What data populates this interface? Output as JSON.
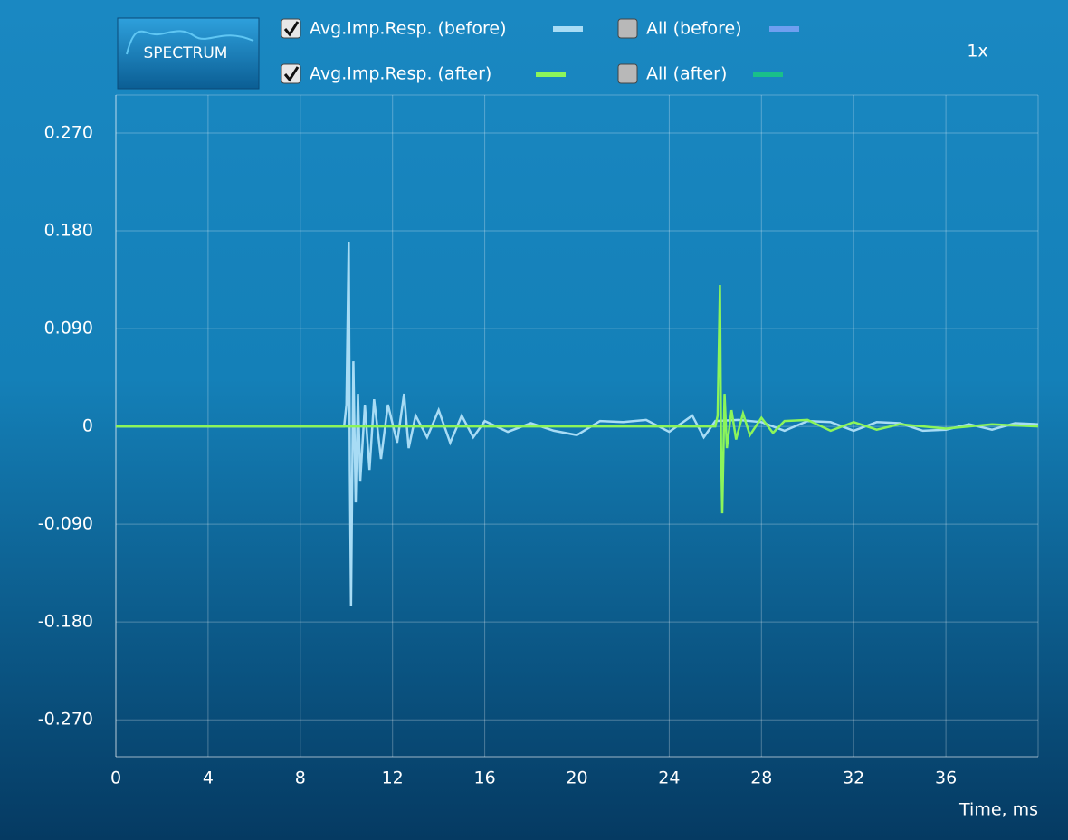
{
  "controls": {
    "spectrum_button": "SPECTRUM",
    "zoom": "1x",
    "toggles": [
      {
        "name": "All (before)",
        "color": "#6f9ff0",
        "checked": false
      },
      {
        "name": "All (after)",
        "color": "#19c08a",
        "checked": false
      }
    ]
  },
  "chart_data": {
    "type": "line",
    "x_label": "Time, ms",
    "grid": true,
    "xlim": [
      0,
      40
    ],
    "xticks": [
      0,
      4,
      8,
      12,
      16,
      20,
      24,
      28,
      32,
      36
    ],
    "ylim": [
      -0.304,
      0.305
    ],
    "yticks": [
      {
        "value": -0.27,
        "label": "-0.270"
      },
      {
        "value": -0.18,
        "label": "-0.180"
      },
      {
        "value": -0.09,
        "label": "-0.090"
      },
      0,
      {
        "value": 0.09,
        "label": "0.090"
      },
      {
        "value": 0.18,
        "label": "0.180"
      },
      {
        "value": 0.27,
        "label": "0.270"
      }
    ],
    "series": [
      {
        "name": "Avg.Imp.Resp. (before)",
        "color": "#a8dcf5",
        "checked": true,
        "x": [
          0,
          9.9,
          10.0,
          10.1,
          10.15,
          10.2,
          10.3,
          10.4,
          10.5,
          10.6,
          10.8,
          11.0,
          11.2,
          11.5,
          11.8,
          12.2,
          12.5,
          12.7,
          13.0,
          13.5,
          14.0,
          14.5,
          15.0,
          15.5,
          16.0,
          17,
          18,
          19,
          20,
          21,
          22,
          23,
          24,
          25,
          25.5,
          26,
          27,
          28,
          29,
          30,
          31,
          32,
          33,
          34,
          35,
          36,
          37,
          38,
          39,
          40
        ],
        "values": [
          0,
          0,
          0.02,
          0.17,
          -0.04,
          -0.165,
          0.06,
          -0.07,
          0.03,
          -0.05,
          0.02,
          -0.04,
          0.025,
          -0.03,
          0.02,
          -0.015,
          0.03,
          -0.02,
          0.01,
          -0.01,
          0.015,
          -0.015,
          0.01,
          -0.01,
          0.005,
          -0.005,
          0.003,
          -0.004,
          -0.008,
          0.005,
          0.004,
          0.006,
          -0.005,
          0.01,
          -0.01,
          0.005,
          0.006,
          0.004,
          -0.004,
          0.005,
          0.004,
          -0.004,
          0.004,
          0.003,
          -0.004,
          -0.003,
          0.002,
          -0.003,
          0.003,
          0.002
        ]
      },
      {
        "name": "Avg.Imp.Resp. (after)",
        "color": "#8cf55a",
        "checked": true,
        "x": [
          0,
          26.0,
          26.1,
          26.2,
          26.25,
          26.3,
          26.4,
          26.5,
          26.7,
          26.9,
          27.2,
          27.5,
          28.0,
          28.5,
          29.0,
          30.0,
          31.0,
          32.0,
          33.0,
          34.0,
          36.0,
          38.0,
          40.0
        ],
        "values": [
          0,
          0,
          0.01,
          0.13,
          -0.02,
          -0.08,
          0.03,
          -0.02,
          0.015,
          -0.012,
          0.012,
          -0.008,
          0.008,
          -0.006,
          0.005,
          0.006,
          -0.004,
          0.004,
          -0.003,
          0.002,
          -0.002,
          0.002,
          0
        ]
      }
    ]
  }
}
